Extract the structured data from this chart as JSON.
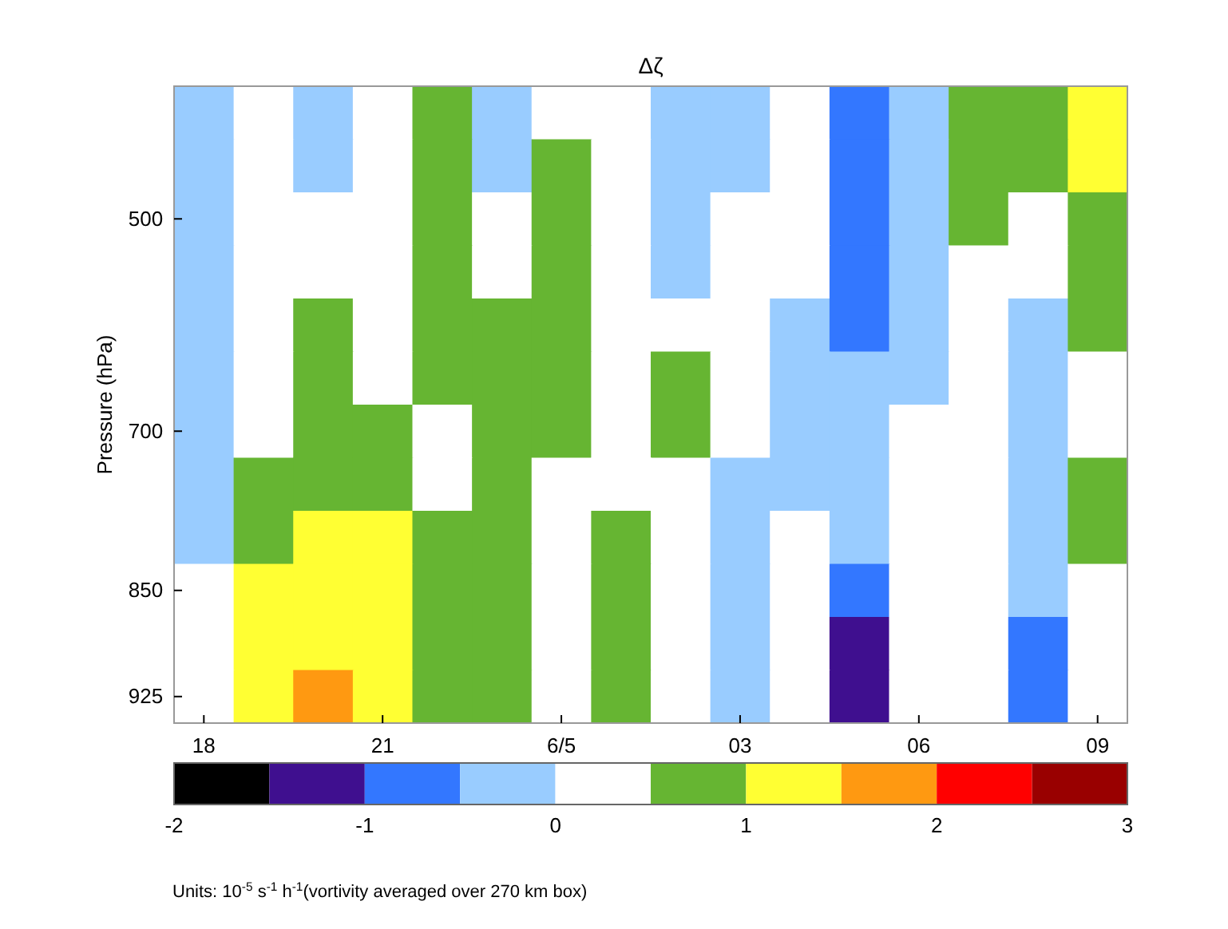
{
  "chart_data": {
    "type": "heatmap",
    "title": "Δζ",
    "ylabel": "Pressure (hPa)",
    "categories": [
      "18",
      null,
      null,
      "21",
      null,
      null,
      "6/5",
      null,
      null,
      "03",
      null,
      null,
      "06",
      null,
      null,
      "09"
    ],
    "y_categories": [
      null,
      null,
      "500",
      null,
      null,
      null,
      "700",
      null,
      null,
      "850",
      null,
      "925"
    ],
    "cells": [
      [
        -0.25,
        0.25,
        -0.25,
        0.25,
        0.75,
        -0.25,
        0.25,
        0.25,
        -0.25,
        -0.25,
        0.25,
        -0.75,
        -0.25,
        0.75,
        0.75,
        1.25
      ],
      [
        -0.25,
        0.25,
        -0.25,
        0.25,
        0.75,
        -0.25,
        0.75,
        0.25,
        -0.25,
        -0.25,
        0.25,
        -0.75,
        -0.25,
        0.75,
        0.75,
        1.25
      ],
      [
        -0.25,
        0.25,
        0.25,
        0.25,
        0.75,
        0.25,
        0.75,
        0.25,
        -0.25,
        0.25,
        0.25,
        -0.75,
        -0.25,
        0.75,
        0.25,
        0.75
      ],
      [
        -0.25,
        0.25,
        0.25,
        0.25,
        0.75,
        0.25,
        0.75,
        0.25,
        -0.25,
        0.25,
        0.25,
        -0.75,
        -0.25,
        0.25,
        0.25,
        0.75
      ],
      [
        -0.25,
        0.25,
        0.75,
        0.25,
        0.75,
        0.75,
        0.75,
        0.25,
        0.25,
        0.25,
        -0.25,
        -0.75,
        -0.25,
        0.25,
        -0.25,
        0.75
      ],
      [
        -0.25,
        0.25,
        0.75,
        0.25,
        0.75,
        0.75,
        0.75,
        0.25,
        0.75,
        0.25,
        -0.25,
        -0.25,
        -0.25,
        0.25,
        -0.25,
        0.25
      ],
      [
        -0.25,
        0.25,
        0.75,
        0.75,
        0.25,
        0.75,
        0.75,
        0.25,
        0.75,
        0.25,
        -0.25,
        -0.25,
        0.25,
        0.25,
        -0.25,
        0.25
      ],
      [
        -0.25,
        0.75,
        0.75,
        0.75,
        0.25,
        0.75,
        0.25,
        0.25,
        0.25,
        -0.25,
        -0.25,
        -0.25,
        0.25,
        0.25,
        -0.25,
        0.75
      ],
      [
        -0.25,
        0.75,
        1.25,
        1.25,
        0.75,
        0.75,
        0.25,
        0.75,
        0.25,
        -0.25,
        0.25,
        -0.25,
        0.25,
        0.25,
        -0.25,
        0.75
      ],
      [
        0.25,
        1.25,
        1.25,
        1.25,
        0.75,
        0.75,
        0.25,
        0.75,
        0.25,
        -0.25,
        0.25,
        -0.75,
        0.25,
        0.25,
        -0.25,
        0.25
      ],
      [
        0.25,
        1.25,
        1.25,
        1.25,
        0.75,
        0.75,
        0.25,
        0.75,
        0.25,
        -0.25,
        0.25,
        -1.25,
        0.25,
        0.25,
        -0.75,
        0.25
      ],
      [
        0.25,
        1.25,
        1.75,
        1.25,
        0.75,
        0.75,
        0.25,
        0.75,
        0.25,
        -0.25,
        0.25,
        -1.25,
        0.25,
        0.25,
        -0.75,
        0.25
      ]
    ],
    "clim": [
      -2,
      3
    ],
    "cticks": [
      -2,
      -1,
      0,
      1,
      2,
      3
    ],
    "colors": [
      "#000000",
      "#3f0f8f",
      "#3377ff",
      "#99ccff",
      "#ffffff",
      "#66b532",
      "#ffff33",
      "#ff9911",
      "#ff0000",
      "#990000"
    ],
    "annotations": [
      "Units: 10$^{-5}$ s$^{-1}$ h$^{-1}$(vortivity averaged over 270 km box)"
    ]
  }
}
